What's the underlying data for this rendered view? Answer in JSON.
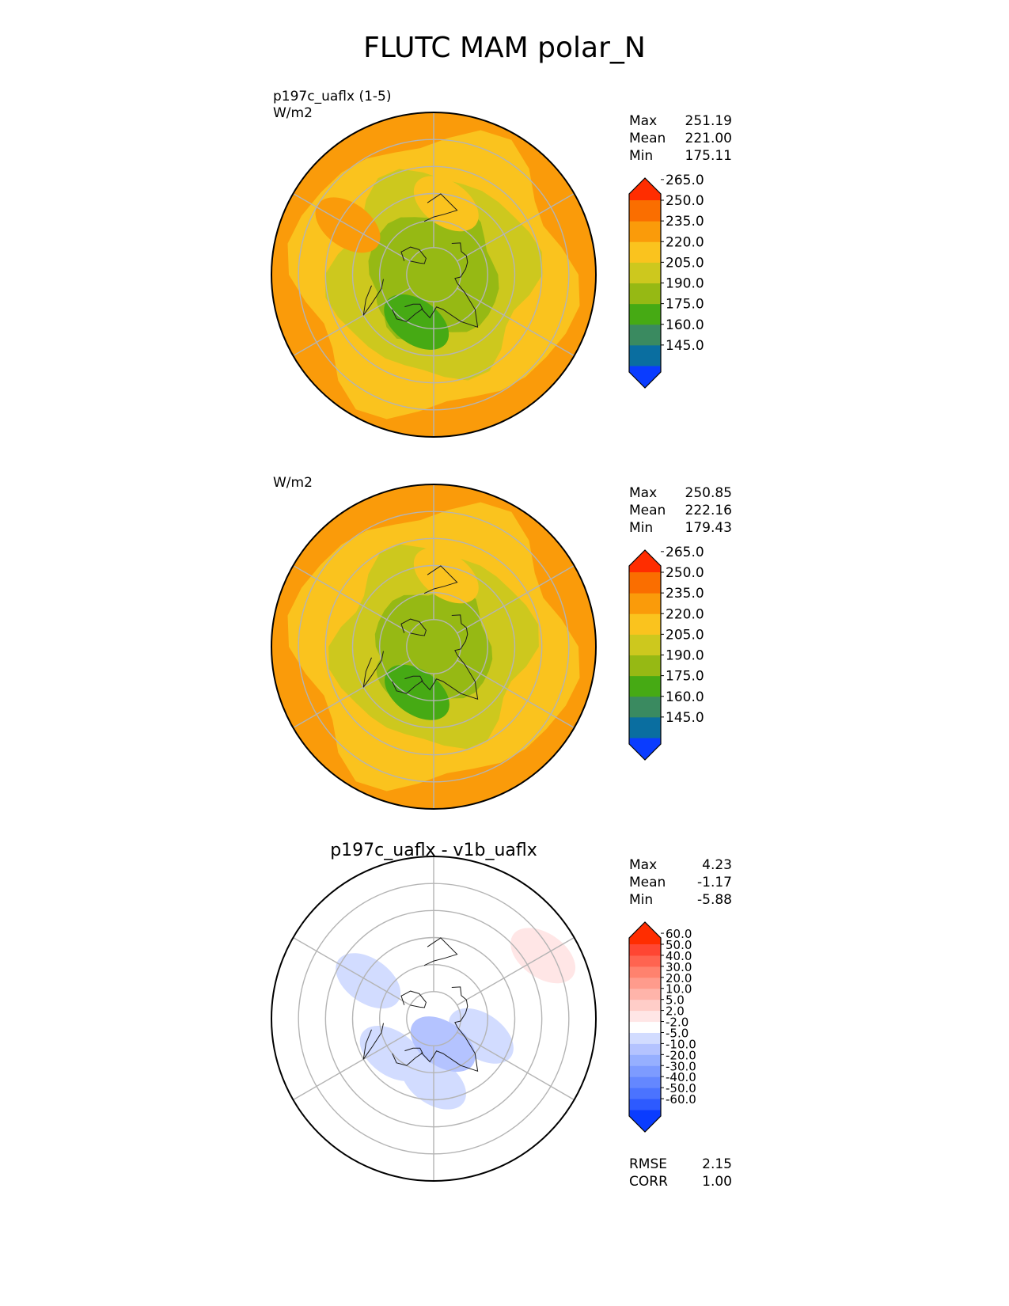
{
  "figure_title": "FLUTC MAM polar_N",
  "chart_data": [
    {
      "type": "heatmap",
      "projection": "north polar stereographic",
      "label_lines": [
        "p197c_uaflx (1-5)",
        "W/m2"
      ],
      "title": "",
      "stats": [
        {
          "name": "Max",
          "value": "251.19"
        },
        {
          "name": "Mean",
          "value": "221.00"
        },
        {
          "name": "Min",
          "value": "175.11"
        }
      ],
      "colorbar": {
        "colors": [
          "#0a3cff",
          "#0a6ea0",
          "#3a8a60",
          "#46aa14",
          "#96b914",
          "#cdc81e",
          "#fac31e",
          "#fa9b0a",
          "#fa6e00",
          "#ff2d00"
        ],
        "ticks": [
          "145.0",
          "160.0",
          "175.0",
          "190.0",
          "205.0",
          "220.0",
          "235.0",
          "250.0",
          "265.0"
        ]
      },
      "field": {
        "base": "#fa9b0a",
        "rings": [
          {
            "r": 0.85,
            "color": "#fac31e"
          },
          {
            "r": 0.62,
            "color": "#cdc81e"
          },
          {
            "r": 0.4,
            "color": "#96b914"
          }
        ],
        "blobs": [
          {
            "lon": 215,
            "lat": 66,
            "color": "#96b914"
          },
          {
            "lon": 200,
            "lat": 62,
            "color": "#46aa14"
          },
          {
            "lon": 10,
            "lat": 50,
            "color": "#fac31e"
          },
          {
            "lon": 300,
            "lat": 35,
            "color": "#fa9b0a"
          }
        ]
      },
      "extra_lines": []
    },
    {
      "type": "heatmap",
      "projection": "north polar stereographic",
      "label_lines": [
        "W/m2"
      ],
      "title": "",
      "stats": [
        {
          "name": "Max",
          "value": "250.85"
        },
        {
          "name": "Mean",
          "value": "222.16"
        },
        {
          "name": "Min",
          "value": "179.43"
        }
      ],
      "colorbar": {
        "colors": [
          "#0a3cff",
          "#0a6ea0",
          "#3a8a60",
          "#46aa14",
          "#96b914",
          "#cdc81e",
          "#fac31e",
          "#fa9b0a",
          "#fa6e00",
          "#ff2d00"
        ],
        "ticks": [
          "145.0",
          "160.0",
          "175.0",
          "190.0",
          "205.0",
          "220.0",
          "235.0",
          "250.0",
          "265.0"
        ]
      },
      "field": {
        "base": "#fa9b0a",
        "rings": [
          {
            "r": 0.85,
            "color": "#fac31e"
          },
          {
            "r": 0.6,
            "color": "#cdc81e"
          },
          {
            "r": 0.36,
            "color": "#96b914"
          }
        ],
        "blobs": [
          {
            "lon": 215,
            "lat": 66,
            "color": "#96b914"
          },
          {
            "lon": 200,
            "lat": 63,
            "color": "#46aa14"
          },
          {
            "lon": 10,
            "lat": 50,
            "color": "#fac31e"
          }
        ]
      },
      "extra_lines": []
    },
    {
      "type": "heatmap",
      "projection": "north polar stereographic",
      "label_lines": [],
      "title": "p197c_uaflx - v1b_uaflx",
      "stats": [
        {
          "name": "Max",
          "value": "4.23"
        },
        {
          "name": "Mean",
          "value": "-1.17"
        },
        {
          "name": "Min",
          "value": "-5.88"
        }
      ],
      "colorbar": {
        "colors": [
          "#0a3cff",
          "#2d5aff",
          "#4b73ff",
          "#6487ff",
          "#7d9bff",
          "#96afff",
          "#b4c3ff",
          "#d2dcff",
          "#ffffff",
          "#ffe6e6",
          "#ffcdc8",
          "#ffb4aa",
          "#ff9b8c",
          "#ff826e",
          "#ff6450",
          "#ff4632",
          "#ff2d00"
        ],
        "ticks": [
          "-60.0",
          "-50.0",
          "-40.0",
          "-30.0",
          "-20.0",
          "-10.0",
          "-5.0",
          "-2.0",
          "2.0",
          "5.0",
          "10.0",
          "20.0",
          "30.0",
          "40.0",
          "50.0",
          "60.0"
        ]
      },
      "field": {
        "base": "#ffffff",
        "rings": [],
        "blobs": [
          {
            "lon": 230,
            "lat": 60,
            "color": "#d2dcff"
          },
          {
            "lon": 110,
            "lat": 62,
            "color": "#d2dcff"
          },
          {
            "lon": 180,
            "lat": 55,
            "color": "#d2dcff"
          },
          {
            "lon": 160,
            "lat": 75,
            "color": "#b4c3ff"
          },
          {
            "lon": 300,
            "lat": 48,
            "color": "#d2dcff"
          },
          {
            "lon": 60,
            "lat": 20,
            "color": "#ffe6e6"
          }
        ]
      },
      "extra_lines": [
        {
          "name": "RMSE",
          "value": "2.15"
        },
        {
          "name": "CORR",
          "value": "1.00"
        }
      ]
    }
  ]
}
